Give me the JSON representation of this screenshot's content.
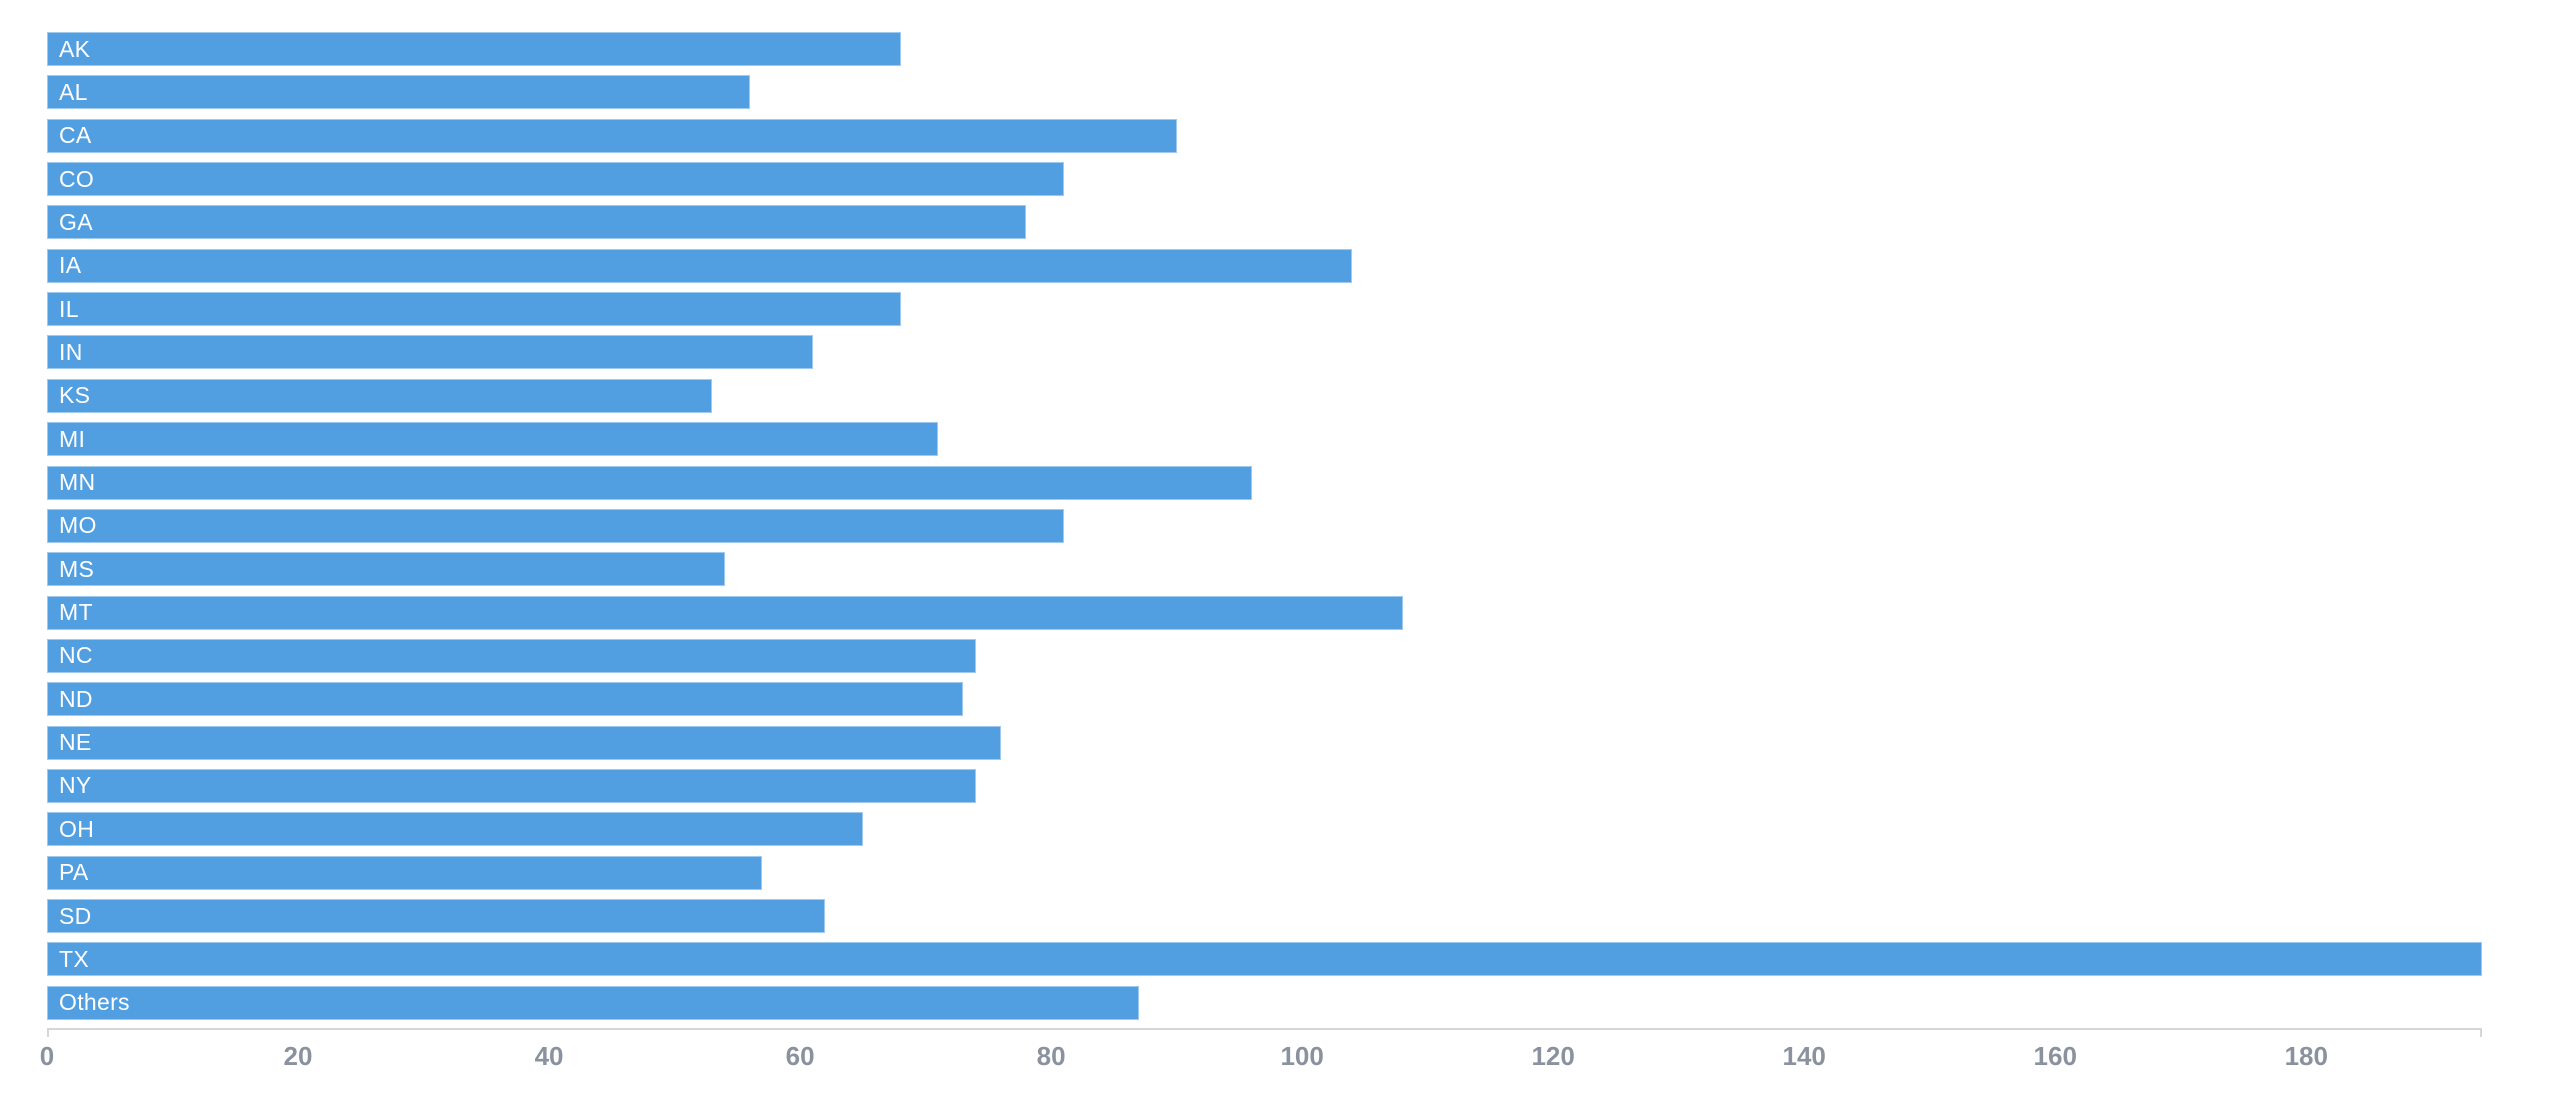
{
  "chart_data": {
    "type": "bar",
    "orientation": "horizontal",
    "title": "",
    "xlabel": "",
    "ylabel": "",
    "categories": [
      "AK",
      "AL",
      "CA",
      "CO",
      "GA",
      "IA",
      "IL",
      "IN",
      "KS",
      "MI",
      "MN",
      "MO",
      "MS",
      "MT",
      "NC",
      "ND",
      "NE",
      "NY",
      "OH",
      "PA",
      "SD",
      "TX",
      "Others"
    ],
    "values": [
      68,
      56,
      90,
      81,
      78,
      104,
      68,
      61,
      53,
      71,
      96,
      81,
      54,
      108,
      74,
      73,
      76,
      74,
      65,
      57,
      62,
      194,
      87
    ],
    "value_labels_inside_bars": true,
    "xlim": [
      0,
      194
    ],
    "x_ticks": [
      0,
      20,
      40,
      60,
      80,
      100,
      120,
      140,
      160,
      180
    ],
    "grid": false,
    "legend": false,
    "colors": {
      "bar_fill": "#519EE1",
      "bar_label_text": "#FFFFFF",
      "axis_line": "#D4D6D9",
      "tick_label_text": "#8A929F",
      "background": "#FFFFFF"
    }
  }
}
